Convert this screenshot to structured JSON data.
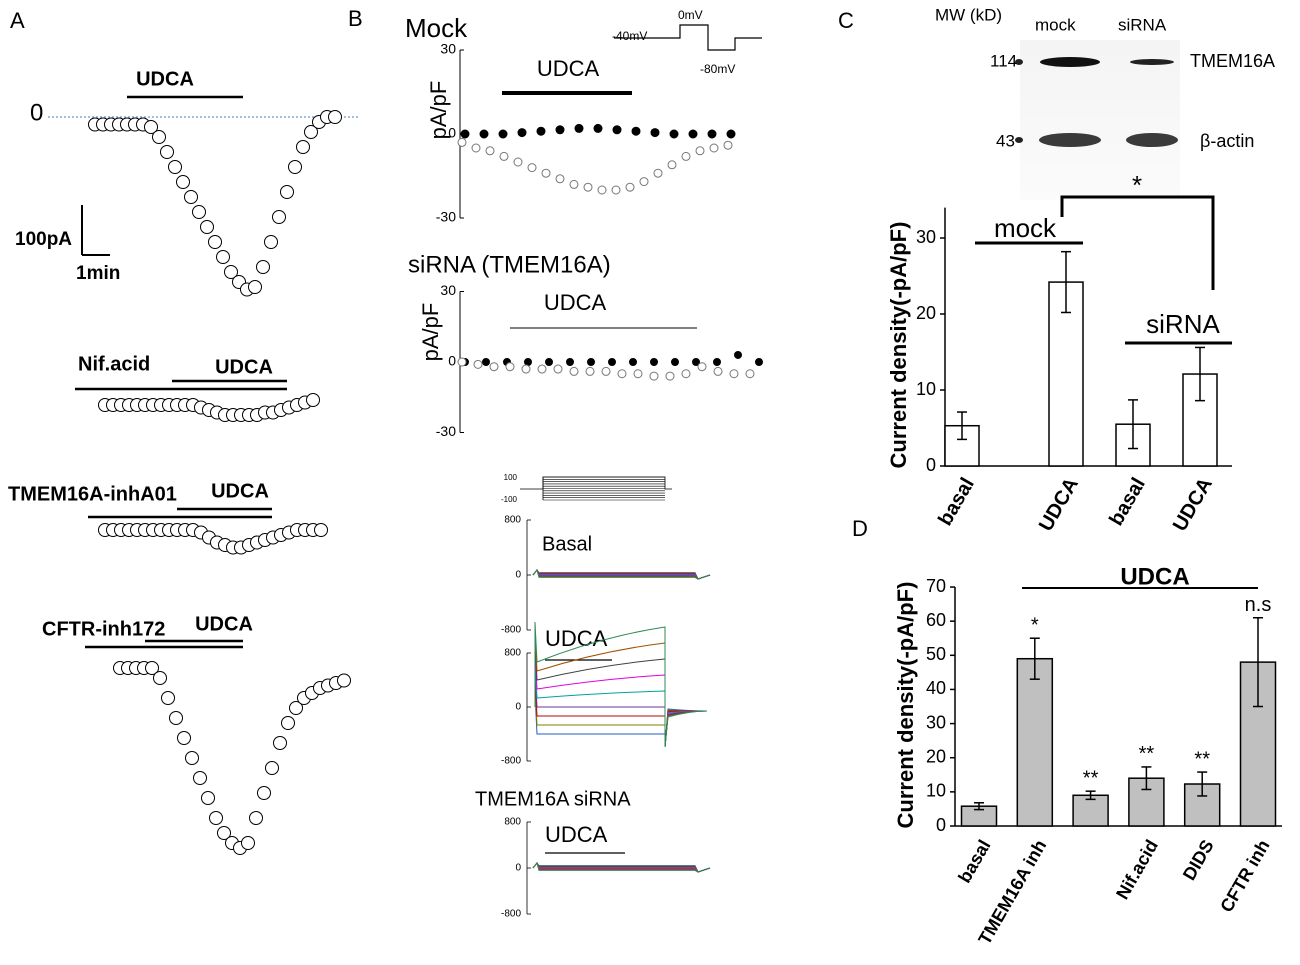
{
  "panel_labels": [
    "A",
    "B",
    "C",
    "D"
  ],
  "panel_a": {
    "zero_label": "0",
    "scale_bar": {
      "current": "100pA",
      "time": "1min"
    },
    "traces": [
      {
        "labels": [
          "UDCA"
        ],
        "values": [
          -15,
          -15,
          -15,
          -15,
          -15,
          -15,
          -15,
          -20,
          -40,
          -70,
          -100,
          -130,
          -160,
          -190,
          -220,
          -250,
          -280,
          -310,
          -330,
          -345,
          -340,
          -300,
          -250,
          -200,
          -150,
          -100,
          -60,
          -30,
          -10,
          0,
          0
        ]
      },
      {
        "labels": [
          "Nif.acid",
          "UDCA"
        ],
        "values": [
          0,
          0,
          0,
          0,
          0,
          0,
          0,
          0,
          0,
          0,
          0,
          0,
          -5,
          -10,
          -15,
          -20,
          -20,
          -20,
          -20,
          -20,
          -15,
          -15,
          -10,
          -5,
          0,
          5,
          10
        ]
      },
      {
        "labels": [
          "TMEM16A-inhA01",
          "UDCA"
        ],
        "values": [
          0,
          0,
          0,
          0,
          0,
          0,
          0,
          0,
          0,
          0,
          0,
          0,
          -5,
          -15,
          -25,
          -30,
          -35,
          -35,
          -30,
          -25,
          -20,
          -15,
          -10,
          -5,
          0,
          0,
          0,
          0
        ]
      },
      {
        "labels": [
          "CFTR-inh172",
          "UDCA"
        ],
        "values": [
          0,
          0,
          0,
          0,
          0,
          -20,
          -60,
          -100,
          -140,
          -180,
          -220,
          -260,
          -300,
          -330,
          -350,
          -360,
          -350,
          -300,
          -250,
          -200,
          -150,
          -110,
          -80,
          -60,
          -50,
          -40,
          -35,
          -30,
          -25
        ]
      }
    ]
  },
  "panel_b": {
    "mock": {
      "title": "Mock",
      "protocol": [
        "-40mV",
        "0mV",
        "-80mV"
      ],
      "ylabel": "pA/pF",
      "treatment": "UDCA",
      "ylim": [
        -30,
        30
      ],
      "yticks": [
        -30,
        0,
        30
      ],
      "series": [
        {
          "color": "#000000",
          "values": [
            0,
            0,
            0,
            0.5,
            1,
            1.5,
            2,
            2,
            1.5,
            1,
            0.5,
            0,
            0,
            0,
            0
          ]
        },
        {
          "color": "#ffffff",
          "values": [
            -3,
            -5,
            -6,
            -8,
            -10,
            -12,
            -14,
            -16,
            -18,
            -19,
            -20,
            -20,
            -19,
            -17,
            -14,
            -11,
            -8,
            -6,
            -5,
            -4
          ]
        }
      ]
    },
    "sirna": {
      "title": "siRNA (TMEM16A)",
      "ylabel": "pA/pF",
      "treatment": "UDCA",
      "ylim": [
        -30,
        30
      ],
      "yticks": [
        -30,
        0,
        30
      ],
      "series": [
        {
          "color": "#000000",
          "values": [
            0,
            0,
            0,
            0,
            0,
            0,
            0,
            0,
            0,
            0,
            0,
            0,
            0,
            3,
            0
          ]
        },
        {
          "color": "#ffffff",
          "values": [
            0,
            -1,
            -2,
            -2,
            -3,
            -3,
            -3,
            -4,
            -4,
            -4,
            -5,
            -5,
            -6,
            -6,
            -5,
            -2,
            -4,
            -5,
            -5
          ]
        }
      ]
    },
    "currents": {
      "protocol_ticks": [
        100,
        -100
      ],
      "panels": [
        {
          "title": "Basal",
          "ylim": [
            -800,
            800
          ],
          "yticks": [
            -800,
            0,
            800
          ]
        },
        {
          "title": "UDCA",
          "ylim": [
            -800,
            800
          ],
          "yticks": [
            -800,
            0,
            800
          ]
        },
        {
          "title": "TMEM16A siRNA",
          "treatment": "UDCA",
          "ylim": [
            -800,
            800
          ],
          "yticks": [
            -800,
            0,
            800
          ]
        }
      ]
    }
  },
  "blot": {
    "header": "MW (kD)",
    "lanes": [
      "mock",
      "siRNA"
    ],
    "markers": [
      114,
      43
    ],
    "bands": [
      "TMEM16A",
      "β-actin"
    ]
  },
  "chart_data": [
    {
      "type": "bar",
      "ylabel": "Current density(-pA/pF)",
      "categories": [
        "basal",
        "UDCA",
        "basal",
        "UDCA"
      ],
      "values": [
        5.3,
        24.2,
        5.5,
        12.1
      ],
      "errors": [
        1.8,
        4,
        3.2,
        3.5
      ],
      "color": "#ffffff",
      "ylim": [
        0,
        34
      ],
      "yticks": [
        0,
        10,
        20,
        30
      ],
      "groups": [
        "mock",
        "siRNA"
      ],
      "annotation": "*"
    },
    {
      "type": "bar",
      "ylabel": "Current density(-pA/pF)",
      "categories": [
        "basal",
        "TMEM16A inh",
        null,
        "Nif.acid",
        "DIDS",
        "CFTR inh"
      ],
      "values": [
        5.8,
        49,
        9,
        14,
        12.3,
        48
      ],
      "errors": [
        1,
        6,
        1.2,
        3.3,
        3.5,
        13
      ],
      "color": "#c0c0c0",
      "ylim": [
        0,
        70
      ],
      "yticks": [
        0,
        10,
        20,
        30,
        40,
        50,
        60,
        70
      ],
      "group": "UDCA",
      "annotations": [
        null,
        "*",
        "**",
        "**",
        "**",
        "n.s"
      ]
    }
  ]
}
